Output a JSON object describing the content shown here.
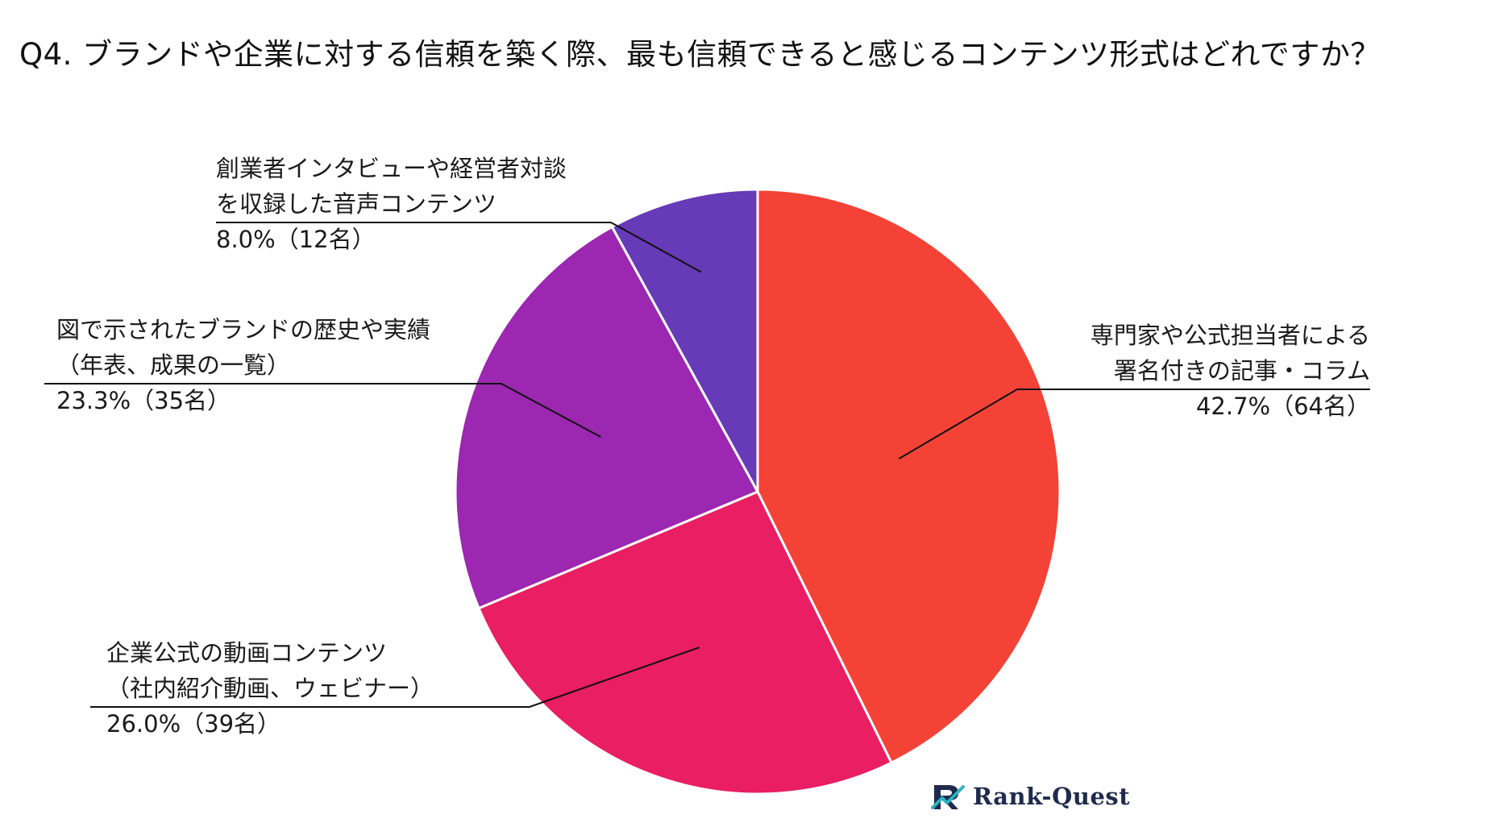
{
  "title": "Q4. ブランドや企業に対する信頼を築く際、最も信頼できると感じるコンテンツ形式はどれですか？",
  "brand": {
    "name": "Rank-Quest",
    "logo_icon": "rq-logo-icon"
  },
  "chart_data": {
    "type": "pie",
    "title": "Q4. ブランドや企業に対する信頼を築く際、最も信頼できると感じるコンテンツ形式はどれですか？",
    "slices": [
      {
        "label_lines": [
          "専門家や公式担当者による",
          "署名付きの記事・コラム"
        ],
        "percent": 42.7,
        "count": 64,
        "value_label": "42.7%（64名）",
        "color": "#f44336"
      },
      {
        "label_lines": [
          "企業公式の動画コンテンツ",
          "（社内紹介動画、ウェビナー）"
        ],
        "percent": 26.0,
        "count": 39,
        "value_label": "26.0%（39名）",
        "color": "#e91e63"
      },
      {
        "label_lines": [
          "図で示されたブランドの歴史や実績",
          "（年表、成果の一覧）"
        ],
        "percent": 23.3,
        "count": 35,
        "value_label": "23.3%（35名）",
        "color": "#9c27b0"
      },
      {
        "label_lines": [
          "創業者インタビューや経営者対談",
          "を収録した音声コンテンツ"
        ],
        "percent": 8.0,
        "count": 12,
        "value_label": "8.0%（12名）",
        "color": "#673ab7"
      }
    ],
    "start": "12 o'clock",
    "direction": "clockwise",
    "legend": "none (leader-line labels)"
  }
}
